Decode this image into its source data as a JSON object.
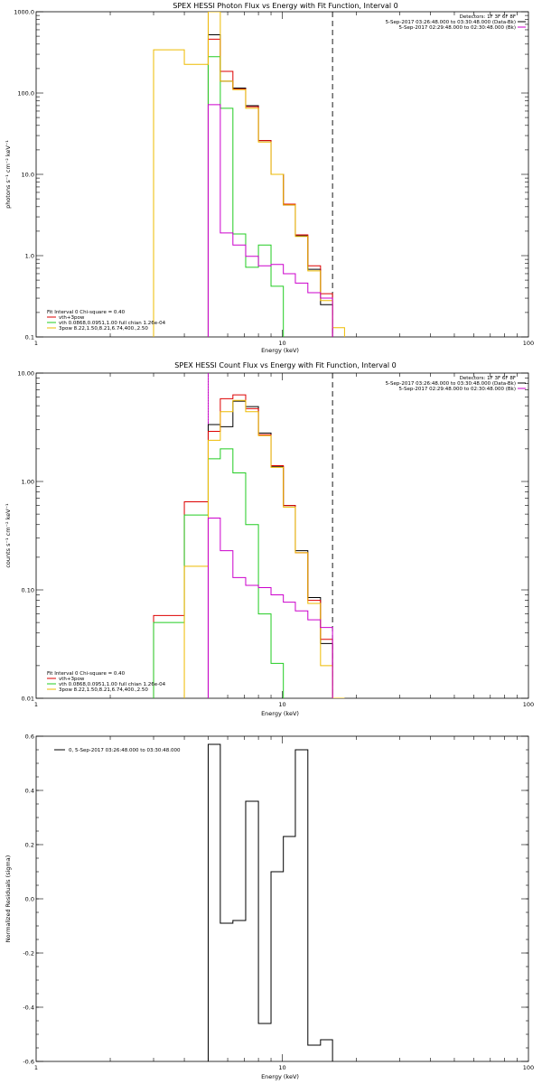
{
  "chart_data": [
    {
      "type": "line",
      "title": "SPEX HESSI Photon Flux vs Energy with Fit Function, Interval 0",
      "xlabel": "Energy (keV)",
      "ylabel": "photons s⁻¹ cm⁻² keV⁻¹",
      "x_scale": "log",
      "y_scale": "log",
      "xlim": [
        1,
        100
      ],
      "ylim": [
        0.1,
        1000
      ],
      "x_ticks": [
        1,
        10,
        100
      ],
      "x_tick_labels": [
        "1",
        "10",
        "100"
      ],
      "y_ticks": [
        0.1,
        1,
        10,
        100,
        1000
      ],
      "y_tick_labels": [
        "0.1",
        "1.0",
        "10.0",
        "100.0",
        "1000.0"
      ],
      "bin_edges": [
        3.0,
        4.0,
        5.0,
        5.6,
        6.3,
        7.1,
        8.0,
        9.0,
        10.1,
        11.3,
        12.7,
        14.3,
        16.0,
        17.9
      ],
      "series": [
        {
          "name": "",
          "color": "#000000",
          "values": [
            null,
            null,
            520,
            140,
            115,
            70,
            26,
            10,
            4.2,
            1.75,
            0.68,
            0.25,
            null
          ]
        },
        {
          "name": "vth+3pow",
          "color": "#dd0000",
          "values": [
            null,
            null,
            460,
            185,
            112,
            68,
            26,
            10,
            4.3,
            1.8,
            0.75,
            0.34,
            null
          ]
        },
        {
          "name": "vth 0.0868,0.0951,1.00  full chian 1.26e-04",
          "color": "#22cc22",
          "values": [
            null,
            null,
            280,
            65,
            1.85,
            0.72,
            1.35,
            0.42,
            null,
            null,
            null,
            null,
            null
          ]
        },
        {
          "name": "3pow 8.22,1.50,8.21,6.74,400.,2.50",
          "color": "#eebb00",
          "values": [
            340,
            225,
            1000,
            140,
            110,
            65,
            25,
            10,
            4.2,
            1.72,
            0.65,
            0.28,
            0.13
          ]
        },
        {
          "name": "",
          "color": "#cc00cc",
          "values": [
            null,
            null,
            72,
            1.9,
            1.35,
            0.98,
            0.75,
            0.78,
            0.6,
            0.46,
            0.35,
            0.3,
            null
          ]
        }
      ],
      "vlines": [
        {
          "x": 5.0,
          "style": "dotted",
          "color": "#000000"
        },
        {
          "x": 5.0,
          "style": "solid",
          "color": "#cc00cc"
        },
        {
          "x": 16.0,
          "style": "dashed",
          "color": "#000000"
        }
      ],
      "legend_right": {
        "detectors": "Detectors: 1F 3F 6F 8F",
        "entries": [
          {
            "text": "5-Sep-2017 03:26:48.000 to 03:30:48.000 (Data-Bk)",
            "color": "#000000"
          },
          {
            "text": "5-Sep-2017 02:29:48.000 to 02:30:48.000 (Bk)",
            "color": "#cc00cc"
          }
        ]
      },
      "legend_left": {
        "header": "Fit Interval 0   Chi-square = 0.40",
        "entries": [
          {
            "text": "vth+3pow",
            "color": "#dd0000"
          },
          {
            "text": "vth 0.0868,0.0951,1.00  full chian 1.26e-04",
            "color": "#22cc22"
          },
          {
            "text": "3pow 8.22,1.50,8.21,6.74,400.,2.50",
            "color": "#eebb00"
          }
        ]
      }
    },
    {
      "type": "line",
      "title": "SPEX HESSI Count Flux vs Energy with Fit Function, Interval 0",
      "xlabel": "Energy (keV)",
      "ylabel": "counts s⁻¹ cm⁻² keV⁻¹",
      "x_scale": "log",
      "y_scale": "log",
      "xlim": [
        1,
        100
      ],
      "ylim": [
        0.01,
        10
      ],
      "x_ticks": [
        1,
        10,
        100
      ],
      "x_tick_labels": [
        "1",
        "10",
        "100"
      ],
      "y_ticks": [
        0.01,
        0.1,
        1,
        10
      ],
      "y_tick_labels": [
        "0.01",
        "0.10",
        "1.00",
        "10.00"
      ],
      "bin_edges": [
        3.0,
        4.0,
        5.0,
        5.6,
        6.3,
        7.1,
        8.0,
        9.0,
        10.1,
        11.3,
        12.7,
        14.3,
        16.0,
        17.9
      ],
      "series": [
        {
          "name": "",
          "color": "#000000",
          "values": [
            null,
            null,
            3.35,
            3.2,
            5.5,
            4.9,
            2.8,
            1.38,
            0.6,
            0.23,
            0.085,
            0.032,
            null
          ]
        },
        {
          "name": "vth+3pow",
          "color": "#dd0000",
          "values": [
            0.058,
            0.65,
            2.9,
            5.8,
            6.3,
            4.7,
            2.7,
            1.4,
            0.6,
            0.22,
            0.08,
            0.035,
            null
          ]
        },
        {
          "name": "vth 0.0868,0.0951,1.00  full chian 1.26e-04",
          "color": "#22cc22",
          "values": [
            0.05,
            0.49,
            1.62,
            2.0,
            1.2,
            0.4,
            0.06,
            0.021,
            null,
            null,
            null,
            null,
            null
          ]
        },
        {
          "name": "3pow 8.22,1.50,8.21,6.74,400.,2.50",
          "color": "#eebb00",
          "values": [
            null,
            0.165,
            2.4,
            4.4,
            5.6,
            4.4,
            2.65,
            1.35,
            0.58,
            0.22,
            0.075,
            0.02,
            0.008
          ]
        },
        {
          "name": "",
          "color": "#cc00cc",
          "values": [
            null,
            null,
            0.46,
            0.23,
            0.13,
            0.11,
            0.105,
            0.09,
            0.077,
            0.064,
            0.053,
            0.045,
            null
          ]
        }
      ],
      "vlines": [
        {
          "x": 5.0,
          "style": "dotted",
          "color": "#000000"
        },
        {
          "x": 5.0,
          "style": "solid",
          "color": "#cc00cc"
        },
        {
          "x": 16.0,
          "style": "dashed",
          "color": "#000000"
        }
      ],
      "legend_right": {
        "detectors": "Detectors: 1F 3F 6F 8F",
        "entries": [
          {
            "text": "5-Sep-2017 03:26:48.000 to 03:30:48.000 (Data-Bk)",
            "color": "#000000"
          },
          {
            "text": "5-Sep-2017 02:29:48.000 to 02:30:48.000 (Bk)",
            "color": "#cc00cc"
          }
        ]
      },
      "legend_left": {
        "header": "Fit Interval 0   Chi-square = 0.40",
        "entries": [
          {
            "text": "vth+3pow",
            "color": "#dd0000"
          },
          {
            "text": "vth 0.0868,0.0951,1.00  full chian 1.26e-04",
            "color": "#22cc22"
          },
          {
            "text": "3pow 8.22,1.50,8.21,6.74,400.,2.50",
            "color": "#eebb00"
          }
        ]
      }
    },
    {
      "type": "line",
      "title": "",
      "xlabel": "Energy (keV)",
      "ylabel": "Normalized Residuals (sigma)",
      "x_scale": "log",
      "y_scale": "linear",
      "xlim": [
        1,
        100
      ],
      "ylim": [
        -0.6,
        0.6
      ],
      "x_ticks": [
        1,
        10,
        100
      ],
      "x_tick_labels": [
        "1",
        "10",
        "100"
      ],
      "y_ticks": [
        -0.6,
        -0.4,
        -0.2,
        0.0,
        0.2,
        0.4,
        0.6
      ],
      "y_tick_labels": [
        "-0.6",
        "-0.4",
        "-0.2",
        "0.0",
        "0.2",
        "0.4",
        "0.6"
      ],
      "bin_edges": [
        5.0,
        5.6,
        6.3,
        7.1,
        8.0,
        9.0,
        10.1,
        11.3,
        12.7,
        14.3,
        16.0
      ],
      "series": [
        {
          "name": "0,  5-Sep-2017 03:26:48.000 to 03:30:48.000",
          "color": "#000000",
          "values": [
            0.57,
            -0.09,
            -0.08,
            0.36,
            -0.46,
            0.1,
            0.23,
            0.55,
            -0.54,
            -0.52
          ]
        }
      ],
      "legend_left": {
        "header": "",
        "entries": [
          {
            "text": "0,  5-Sep-2017 03:26:48.000 to 03:30:48.000",
            "color": "#000000"
          }
        ]
      }
    }
  ]
}
